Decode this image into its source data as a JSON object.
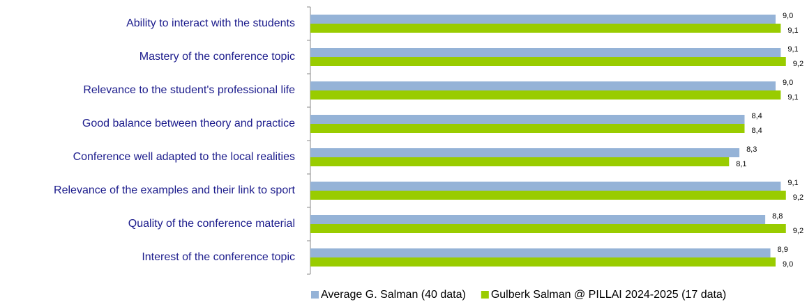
{
  "chart_data": {
    "type": "bar",
    "orientation": "horizontal",
    "categories": [
      "Ability to interact with the students",
      "Mastery of the conference topic",
      "Relevance to the student's professional life",
      "Good balance between theory and practice",
      "Conference well adapted to the local realities",
      "Relevance of the examples and their link to sport",
      "Quality of the conference material",
      "Interest of the conference topic"
    ],
    "series": [
      {
        "name": "Average G. Salman (40 data)",
        "color": "#95b3d7",
        "values": [
          9.0,
          9.1,
          9.0,
          8.4,
          8.3,
          9.1,
          8.8,
          8.9
        ],
        "value_labels": [
          "9,0",
          "9,1",
          "9,0",
          "8,4",
          "8,3",
          "9,1",
          "8,8",
          "8,9"
        ]
      },
      {
        "name": "Gulberk Salman @ PILLAI 2024-2025 (17 data)",
        "color": "#99cc00",
        "values": [
          9.1,
          9.2,
          9.1,
          8.4,
          8.1,
          9.2,
          9.2,
          9.0
        ],
        "value_labels": [
          "9,1",
          "9,2",
          "9,1",
          "8,4",
          "8,1",
          "9,2",
          "9,2",
          "9,0"
        ]
      }
    ],
    "xlim": [
      0,
      9.5
    ],
    "legend": "bottom"
  }
}
